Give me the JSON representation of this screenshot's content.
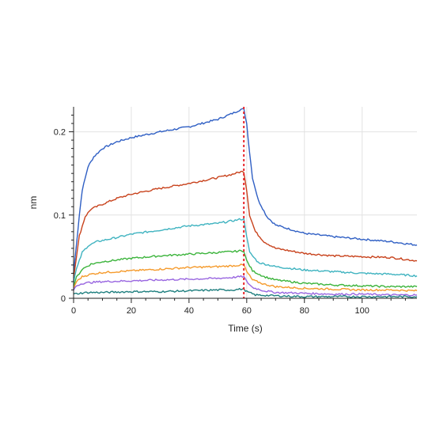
{
  "chart_data": {
    "type": "line",
    "xlabel": "Time (s)",
    "ylabel": "nm",
    "xlim": [
      0,
      119
    ],
    "ylim": [
      0,
      0.23
    ],
    "x_ticks": [
      0,
      20,
      40,
      60,
      80,
      100
    ],
    "y_ticks": [
      0,
      0.1,
      0.2
    ],
    "x_tick_labels": [
      "0",
      "20",
      "40",
      "60",
      "80",
      "100"
    ],
    "y_tick_labels": [
      "0",
      "0.1",
      "0.2"
    ],
    "grid": true,
    "legend": "none",
    "marker_line": {
      "x": 59,
      "color": "#e8262b",
      "style": "dotted"
    },
    "series": [
      {
        "color": "#2f5fc4",
        "points": [
          [
            0,
            0.03
          ],
          [
            1,
            0.065
          ],
          [
            2,
            0.1
          ],
          [
            3,
            0.13
          ],
          [
            5,
            0.158
          ],
          [
            7,
            0.17
          ],
          [
            10,
            0.18
          ],
          [
            15,
            0.188
          ],
          [
            20,
            0.193
          ],
          [
            30,
            0.2
          ],
          [
            40,
            0.206
          ],
          [
            50,
            0.215
          ],
          [
            55,
            0.222
          ],
          [
            58,
            0.227
          ],
          [
            59,
            0.227
          ],
          [
            60,
            0.21
          ],
          [
            61,
            0.175
          ],
          [
            62,
            0.145
          ],
          [
            64,
            0.118
          ],
          [
            67,
            0.098
          ],
          [
            70,
            0.088
          ],
          [
            75,
            0.083
          ],
          [
            80,
            0.078
          ],
          [
            90,
            0.074
          ],
          [
            100,
            0.071
          ],
          [
            110,
            0.068
          ],
          [
            119,
            0.064
          ]
        ]
      },
      {
        "color": "#c8421c",
        "points": [
          [
            0,
            0.025
          ],
          [
            1,
            0.05
          ],
          [
            2,
            0.075
          ],
          [
            4,
            0.098
          ],
          [
            6,
            0.107
          ],
          [
            10,
            0.113
          ],
          [
            15,
            0.12
          ],
          [
            20,
            0.125
          ],
          [
            30,
            0.132
          ],
          [
            40,
            0.138
          ],
          [
            50,
            0.145
          ],
          [
            55,
            0.149
          ],
          [
            58,
            0.152
          ],
          [
            59,
            0.152
          ],
          [
            60,
            0.13
          ],
          [
            61,
            0.1
          ],
          [
            63,
            0.08
          ],
          [
            66,
            0.068
          ],
          [
            70,
            0.06
          ],
          [
            80,
            0.054
          ],
          [
            90,
            0.051
          ],
          [
            100,
            0.05
          ],
          [
            110,
            0.049
          ],
          [
            119,
            0.045
          ]
        ]
      },
      {
        "color": "#3fb3c0",
        "points": [
          [
            0,
            0.02
          ],
          [
            1,
            0.035
          ],
          [
            3,
            0.055
          ],
          [
            5,
            0.063
          ],
          [
            8,
            0.068
          ],
          [
            15,
            0.073
          ],
          [
            20,
            0.077
          ],
          [
            30,
            0.082
          ],
          [
            40,
            0.087
          ],
          [
            50,
            0.09
          ],
          [
            55,
            0.093
          ],
          [
            58,
            0.095
          ],
          [
            59,
            0.095
          ],
          [
            60,
            0.075
          ],
          [
            61,
            0.055
          ],
          [
            64,
            0.043
          ],
          [
            70,
            0.038
          ],
          [
            80,
            0.034
          ],
          [
            90,
            0.032
          ],
          [
            100,
            0.03
          ],
          [
            110,
            0.029
          ],
          [
            119,
            0.027
          ]
        ]
      },
      {
        "color": "#3cb43c",
        "points": [
          [
            0,
            0.015
          ],
          [
            1,
            0.025
          ],
          [
            3,
            0.035
          ],
          [
            6,
            0.041
          ],
          [
            10,
            0.044
          ],
          [
            20,
            0.048
          ],
          [
            30,
            0.051
          ],
          [
            40,
            0.053
          ],
          [
            50,
            0.055
          ],
          [
            55,
            0.056
          ],
          [
            58,
            0.057
          ],
          [
            59,
            0.057
          ],
          [
            60,
            0.045
          ],
          [
            62,
            0.033
          ],
          [
            66,
            0.026
          ],
          [
            70,
            0.022
          ],
          [
            80,
            0.018
          ],
          [
            90,
            0.016
          ],
          [
            100,
            0.015
          ],
          [
            110,
            0.014
          ],
          [
            119,
            0.014
          ]
        ]
      },
      {
        "color": "#f59a2b",
        "points": [
          [
            0,
            0.012
          ],
          [
            1,
            0.02
          ],
          [
            3,
            0.026
          ],
          [
            6,
            0.029
          ],
          [
            10,
            0.031
          ],
          [
            20,
            0.033
          ],
          [
            30,
            0.035
          ],
          [
            40,
            0.037
          ],
          [
            50,
            0.038
          ],
          [
            55,
            0.039
          ],
          [
            58,
            0.04
          ],
          [
            59,
            0.04
          ],
          [
            60,
            0.032
          ],
          [
            62,
            0.022
          ],
          [
            66,
            0.017
          ],
          [
            70,
            0.014
          ],
          [
            80,
            0.012
          ],
          [
            90,
            0.011
          ],
          [
            100,
            0.01
          ],
          [
            110,
            0.01
          ],
          [
            119,
            0.009
          ]
        ]
      },
      {
        "color": "#9966e0",
        "points": [
          [
            0,
            0.01
          ],
          [
            1,
            0.015
          ],
          [
            3,
            0.018
          ],
          [
            6,
            0.019
          ],
          [
            10,
            0.02
          ],
          [
            20,
            0.021
          ],
          [
            30,
            0.022
          ],
          [
            40,
            0.023
          ],
          [
            50,
            0.024
          ],
          [
            55,
            0.025
          ],
          [
            58,
            0.026
          ],
          [
            59,
            0.026
          ],
          [
            60,
            0.02
          ],
          [
            62,
            0.013
          ],
          [
            66,
            0.009
          ],
          [
            70,
            0.007
          ],
          [
            80,
            0.006
          ],
          [
            90,
            0.005
          ],
          [
            100,
            0.005
          ],
          [
            110,
            0.004
          ],
          [
            119,
            0.004
          ]
        ]
      },
      {
        "color": "#1f7f7f",
        "points": [
          [
            0,
            0.005
          ],
          [
            2,
            0.006
          ],
          [
            5,
            0.007
          ],
          [
            10,
            0.007
          ],
          [
            20,
            0.008
          ],
          [
            30,
            0.008
          ],
          [
            40,
            0.009
          ],
          [
            50,
            0.01
          ],
          [
            55,
            0.01
          ],
          [
            58,
            0.011
          ],
          [
            59,
            0.011
          ],
          [
            60,
            0.008
          ],
          [
            63,
            0.004
          ],
          [
            70,
            0.003
          ],
          [
            80,
            0.002
          ],
          [
            90,
            0.002
          ],
          [
            100,
            0.002
          ],
          [
            110,
            0.002
          ],
          [
            119,
            0.002
          ]
        ]
      }
    ]
  }
}
